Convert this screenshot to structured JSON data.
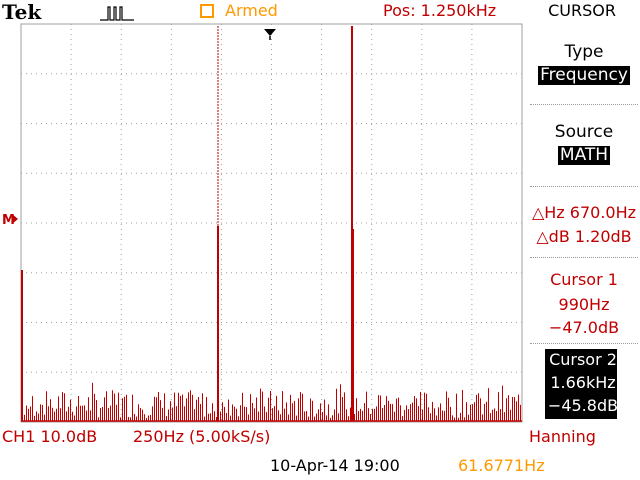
{
  "header": {
    "brand": "Tek",
    "trigger_status": "Armed",
    "position": "Pos: 1.250kHz",
    "menu_title": "CURSOR"
  },
  "side_menu": {
    "type_label": "Type",
    "type_value": "Frequency",
    "source_label": "Source",
    "source_value": "MATH",
    "delta_hz": "△Hz 670.0Hz",
    "delta_db": "△dB 1.20dB",
    "cursor1": {
      "label": "Cursor 1",
      "freq": "990Hz",
      "level": "−47.0dB"
    },
    "cursor2": {
      "label": "Cursor 2",
      "freq": "1.66kHz",
      "level": "−45.8dB"
    }
  },
  "footer": {
    "channel": "CH1 10.0dB",
    "scale": "250Hz (5.00kS/s)",
    "window": "Hanning",
    "datetime": "10-Apr-14 19:00",
    "frequency_readout": "61.6771Hz"
  },
  "math_marker": "M",
  "colors": {
    "trace": "#c00000",
    "armed": "#ff9900",
    "grid": "#a0a0a0",
    "background": "#ffffff"
  }
}
